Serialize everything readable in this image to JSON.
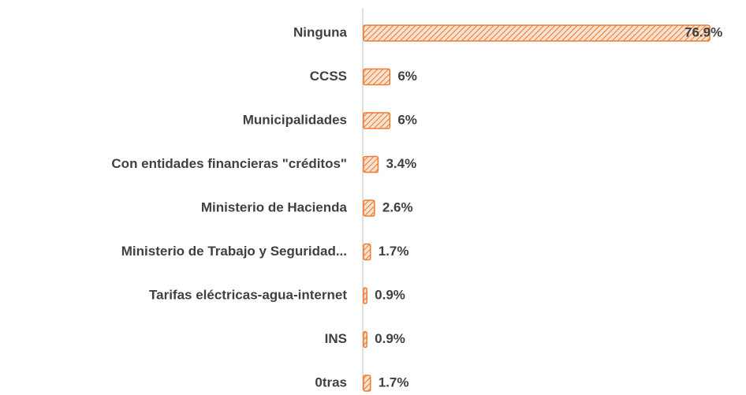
{
  "chart_data": {
    "type": "bar",
    "orientation": "horizontal",
    "categories": [
      "Ninguna",
      "CCSS",
      "Municipalidades",
      "Con entidades financieras \"créditos\"",
      "Ministerio de Hacienda",
      "Ministerio de Trabajo y Seguridad...",
      "Tarifas eléctricas-agua-internet",
      "INS",
      "0tras"
    ],
    "values": [
      76.9,
      6,
      6,
      3.4,
      2.6,
      1.7,
      0.9,
      0.9,
      1.7
    ],
    "value_labels": [
      "76.9%",
      "6%",
      "6%",
      "3.4%",
      "2.6%",
      "1.7%",
      "0.9%",
      "0.9%",
      "1.7%"
    ],
    "color": "#ed7d31"
  }
}
